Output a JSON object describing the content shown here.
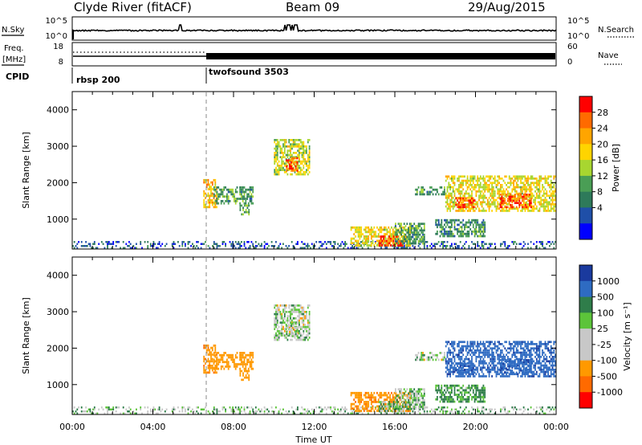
{
  "header": {
    "station": "Clyde River (fitACF)",
    "beam": "Beam 09",
    "date": "29/Aug/2015"
  },
  "top_panels": {
    "nsky_label": "N.Sky",
    "nsky_ticks": [
      "10^5",
      "10^0"
    ],
    "nsearch_label": "N.Search",
    "nsearch_ticks": [
      "10^5",
      "10^0"
    ],
    "freq_label_1": "Freq.",
    "freq_label_2": "[MHz]",
    "freq_ticks": [
      "18",
      "8"
    ],
    "nave_label": "Nave",
    "nave_ticks": [
      "60",
      "0"
    ],
    "cpid_label": "CPID",
    "cpid_modes": [
      {
        "name": "rbsp 200",
        "start_hour": 0
      },
      {
        "name": "twofsound 3503",
        "start_hour": 6.5
      }
    ]
  },
  "x_axis": {
    "title": "Time UT",
    "tick_labels": [
      "00:00",
      "04:00",
      "08:00",
      "12:00",
      "16:00",
      "20:00",
      "00:00"
    ],
    "tick_hours": [
      0,
      4,
      8,
      12,
      16,
      20,
      24
    ]
  },
  "power_panel": {
    "ylabel": "Slant Range [km]",
    "ytick_labels": [
      "1000",
      "2000",
      "3000",
      "4000"
    ],
    "colorbar_title": "Power [dB]",
    "colorbar_ticks": [
      "28",
      "24",
      "20",
      "16",
      "12",
      "8",
      "4"
    ],
    "colorbar_colors": [
      "#ff0000",
      "#ff6a00",
      "#ffa500",
      "#ffd400",
      "#a8d630",
      "#4a9e55",
      "#2e7a5a",
      "#1f4fa8",
      "#0000ff"
    ]
  },
  "velocity_panel": {
    "ylabel": "Slant Range [km]",
    "ytick_labels": [
      "1000",
      "2000",
      "3000",
      "4000"
    ],
    "colorbar_title": "Velocity [m s⁻¹]",
    "colorbar_ticks": [
      "1000",
      "500",
      "100",
      "25",
      "-25",
      "-100",
      "-500",
      "-1000"
    ],
    "colorbar_colors": [
      "#1a3a9e",
      "#2e6bc2",
      "#2f7d4a",
      "#5cc43a",
      "#c8c8c8",
      "#c8c8c8",
      "#ff9900",
      "#ff6a00",
      "#ff0000"
    ]
  },
  "chart_data": {
    "type": "heatmap",
    "title": "Clyde River (fitACF) Beam 09 29/Aug/2015",
    "xlabel": "Time UT",
    "ylabel": "Slant Range [km]",
    "xlim_hours": [
      0,
      24
    ],
    "ylim_km": [
      180,
      4500
    ],
    "power_scale_db": [
      0,
      30
    ],
    "velocity_scale_ms": [
      -1000,
      1000
    ],
    "mode_change_hour": 6.5,
    "echo_regions": [
      {
        "t0": 0.0,
        "t1": 24.0,
        "r0": 180,
        "r1": 400,
        "power": 5,
        "velocity": 40
      },
      {
        "t0": 6.5,
        "t1": 7.2,
        "r0": 1300,
        "r1": 2100,
        "power": 20,
        "velocity": -400
      },
      {
        "t0": 7.0,
        "t1": 9.0,
        "r0": 1400,
        "r1": 1900,
        "power": 10,
        "velocity": -300
      },
      {
        "t0": 8.3,
        "t1": 8.8,
        "r0": 1100,
        "r1": 1400,
        "power": 12,
        "velocity": -300
      },
      {
        "t0": 10.0,
        "t1": 11.8,
        "r0": 2200,
        "r1": 3200,
        "power": 16,
        "velocity": 0
      },
      {
        "t0": 10.6,
        "t1": 11.2,
        "r0": 2300,
        "r1": 2700,
        "power": 26,
        "velocity": 0
      },
      {
        "t0": 13.8,
        "t1": 16.8,
        "r0": 250,
        "r1": 800,
        "power": 18,
        "velocity": -400
      },
      {
        "t0": 15.2,
        "t1": 16.4,
        "r0": 250,
        "r1": 550,
        "power": 27,
        "velocity": 60
      },
      {
        "t0": 16.0,
        "t1": 17.5,
        "r0": 300,
        "r1": 900,
        "power": 10,
        "velocity": 60
      },
      {
        "t0": 17.0,
        "t1": 18.5,
        "r0": 1650,
        "r1": 1900,
        "power": 10,
        "velocity": 0
      },
      {
        "t0": 18.5,
        "t1": 24.0,
        "r0": 1200,
        "r1": 2200,
        "power": 18,
        "velocity": 600
      },
      {
        "t0": 19.0,
        "t1": 20.0,
        "r0": 1300,
        "r1": 1600,
        "power": 26,
        "velocity": 600
      },
      {
        "t0": 21.2,
        "t1": 22.8,
        "r0": 1300,
        "r1": 1700,
        "power": 27,
        "velocity": 600
      },
      {
        "t0": 18.0,
        "t1": 20.5,
        "r0": 500,
        "r1": 1000,
        "power": 9,
        "velocity": 150
      }
    ]
  }
}
